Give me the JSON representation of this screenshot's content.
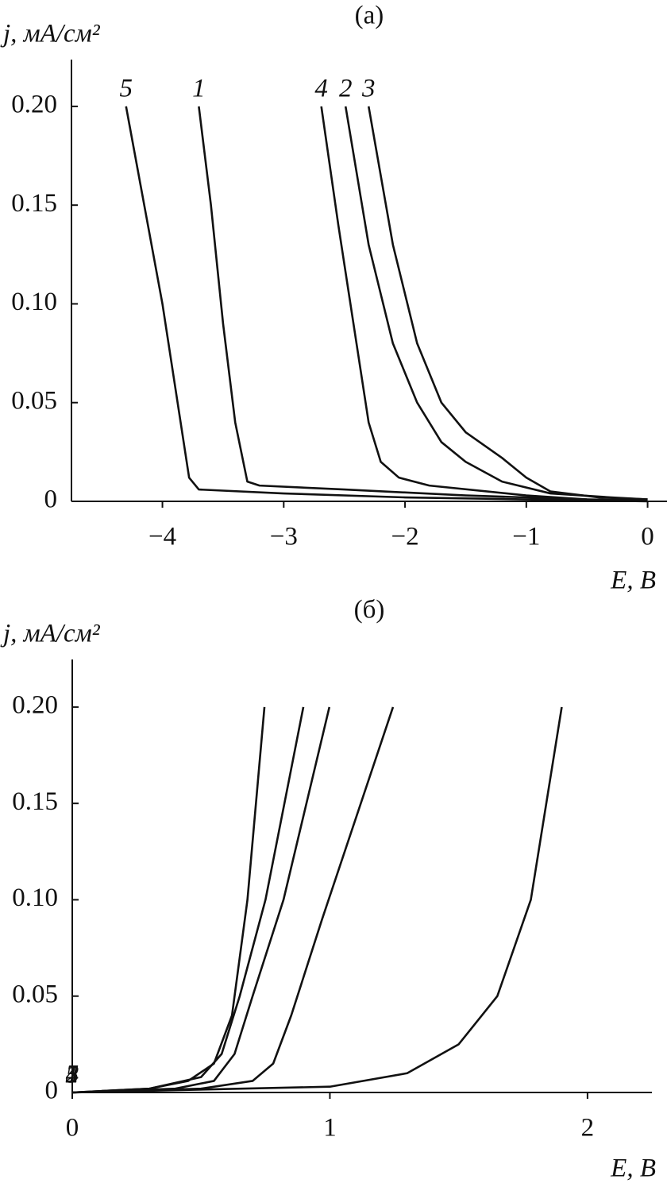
{
  "chart_data": [
    {
      "type": "line",
      "title": "(a)",
      "y_label": "j, мА/см²",
      "x_label": "E, В",
      "xlim": [
        -4.75,
        0.16
      ],
      "ylim": [
        0,
        0.2237
      ],
      "xticks": [
        {
          "value": -4,
          "label": "−4"
        },
        {
          "value": -3,
          "label": "−3"
        },
        {
          "value": -2,
          "label": "−2"
        },
        {
          "value": -1,
          "label": "−1"
        },
        0
      ],
      "yticks": [
        0,
        0.05,
        {
          "value": 0.1,
          "label": "0.10"
        },
        0.15,
        {
          "value": 0.2,
          "label": "0.20"
        }
      ],
      "series": [
        {
          "name": "5",
          "color": "#111111",
          "x": [
            -4.3,
            -4.0,
            -3.85,
            -3.78,
            -3.7,
            -3.0,
            -2.0,
            -1.0,
            0
          ],
          "values": [
            0.2,
            0.1,
            0.04,
            0.012,
            0.006,
            0.004,
            0.002,
            0.001,
            0
          ]
        },
        {
          "name": "1",
          "color": "#111111",
          "x": [
            -3.7,
            -3.6,
            -3.5,
            -3.4,
            -3.3,
            -3.2,
            -2.5,
            -1.5,
            -0.5,
            0
          ],
          "values": [
            0.2,
            0.15,
            0.09,
            0.04,
            0.01,
            0.008,
            0.006,
            0.003,
            0.001,
            0.0005
          ]
        },
        {
          "name": "4",
          "color": "#111111",
          "x": [
            -2.69,
            -2.55,
            -2.4,
            -2.3,
            -2.2,
            -2.05,
            -1.8,
            -1.0,
            -0.5
          ],
          "values": [
            0.2,
            0.14,
            0.08,
            0.04,
            0.02,
            0.012,
            0.008,
            0.003,
            0.001
          ]
        },
        {
          "name": "2",
          "color": "#111111",
          "x": [
            -2.49,
            -2.3,
            -2.1,
            -1.9,
            -1.7,
            -1.5,
            -1.2,
            -0.8,
            -0.3,
            0
          ],
          "values": [
            0.2,
            0.13,
            0.08,
            0.05,
            0.03,
            0.02,
            0.01,
            0.004,
            0.002,
            0.001
          ]
        },
        {
          "name": "3",
          "color": "#111111",
          "x": [
            -2.3,
            -2.1,
            -1.9,
            -1.7,
            -1.5,
            -1.2,
            -1.0,
            -0.8,
            -0.4,
            0
          ],
          "values": [
            0.2,
            0.13,
            0.08,
            0.05,
            0.035,
            0.022,
            0.012,
            0.005,
            0.002,
            0.001
          ]
        }
      ]
    },
    {
      "type": "line",
      "title": "(б)",
      "y_label": "j, мА/см²",
      "x_label": "E, В",
      "xlim": [
        0,
        2.25
      ],
      "ylim": [
        0,
        0.2247
      ],
      "xticks": [
        0,
        1,
        2
      ],
      "yticks": [
        0,
        0.05,
        {
          "value": 0.1,
          "label": "0.10"
        },
        0.15,
        {
          "value": 0.2,
          "label": "0.20"
        }
      ],
      "series": [
        {
          "name": "4",
          "color": "#111111",
          "x": [
            0,
            0.3,
            0.45,
            0.55,
            0.62,
            0.68,
            0.746
          ],
          "values": [
            0,
            0.002,
            0.006,
            0.015,
            0.04,
            0.1,
            0.2
          ]
        },
        {
          "name": "2",
          "color": "#111111",
          "x": [
            0,
            0.3,
            0.5,
            0.58,
            0.65,
            0.75,
            0.897
          ],
          "values": [
            0,
            0.002,
            0.008,
            0.02,
            0.05,
            0.1,
            0.2
          ]
        },
        {
          "name": "3",
          "color": "#111111",
          "x": [
            0,
            0.4,
            0.55,
            0.63,
            0.7,
            0.82,
            0.998
          ],
          "values": [
            0,
            0.002,
            0.006,
            0.02,
            0.05,
            0.1,
            0.2
          ]
        },
        {
          "name": "5",
          "color": "#111111",
          "x": [
            0,
            0.5,
            0.7,
            0.78,
            0.85,
            0.97,
            1.245
          ],
          "values": [
            0,
            0.002,
            0.006,
            0.015,
            0.04,
            0.09,
            0.2
          ]
        },
        {
          "name": "1",
          "color": "#111111",
          "x": [
            0,
            1.0,
            1.3,
            1.5,
            1.65,
            1.78,
            1.9
          ],
          "values": [
            0,
            0.003,
            0.01,
            0.025,
            0.05,
            0.1,
            0.2
          ]
        }
      ]
    }
  ]
}
